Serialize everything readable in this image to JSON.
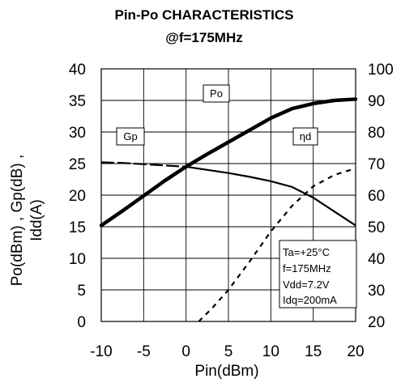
{
  "chart_data": {
    "type": "line",
    "title": "Pin-Po CHARACTERISTICS",
    "subtitle": "@f=175MHz",
    "xlabel": "Pin(dBm)",
    "ylabel_lines": [
      "Po(dBm) , Gp(dB) ,",
      "Idd(A)"
    ],
    "xlim": [
      -10,
      20
    ],
    "ylim": [
      0,
      40
    ],
    "y2lim": [
      20,
      100
    ],
    "x_ticks": [
      -10,
      -5,
      0,
      5,
      10,
      15,
      20
    ],
    "x_tick_labels": [
      "-10",
      "-5",
      "0",
      "5",
      "10",
      "15",
      "20"
    ],
    "y_ticks": [
      0,
      5,
      10,
      15,
      20,
      25,
      30,
      35,
      40
    ],
    "y_tick_labels": [
      "0",
      "5",
      "10",
      "15",
      "20",
      "25",
      "30",
      "35",
      "40"
    ],
    "y2_ticks": [
      20,
      30,
      40,
      50,
      60,
      70,
      80,
      90,
      100
    ],
    "y2_tick_labels": [
      "20",
      "30",
      "40",
      "50",
      "60",
      "70",
      "80",
      "90",
      "100"
    ],
    "grid": true,
    "series": [
      {
        "name": "Po",
        "axis": "left",
        "style": "solid-thick",
        "color": "#000000",
        "x": [
          -10,
          -7.5,
          -5,
          -2.5,
          0,
          2.5,
          5,
          7.5,
          10,
          12.5,
          15,
          17.5,
          20
        ],
        "y": [
          15.2,
          17.5,
          19.9,
          22.3,
          24.5,
          26.5,
          28.4,
          30.3,
          32.2,
          33.7,
          34.5,
          35,
          35.2
        ]
      },
      {
        "name": "Gp",
        "axis": "left",
        "style": "long-dash-then-solid",
        "color": "#000000",
        "x": [
          -10,
          -7.5,
          -5,
          -2.5,
          0,
          2.5,
          5,
          7.5,
          10,
          12.5,
          15,
          17.5,
          20
        ],
        "y": [
          25.2,
          25.1,
          24.9,
          24.7,
          24.5,
          24,
          23.5,
          22.9,
          22.2,
          21.3,
          19.6,
          17.4,
          15.2
        ]
      },
      {
        "name": "ηd",
        "axis": "right",
        "style": "short-dash",
        "color": "#000000",
        "x": [
          1.5,
          3,
          5,
          7.5,
          10,
          12.5,
          15,
          17.5,
          20
        ],
        "y": [
          20,
          24,
          30,
          39,
          48.5,
          56.6,
          62.8,
          66.4,
          68.5
        ]
      }
    ],
    "series_labels": [
      "Po",
      "Gp",
      "ηd"
    ],
    "note_lines": [
      "Ta=+25°C",
      "f=175MHz",
      "Vdd=7.2V",
      "Idq=200mA"
    ]
  }
}
